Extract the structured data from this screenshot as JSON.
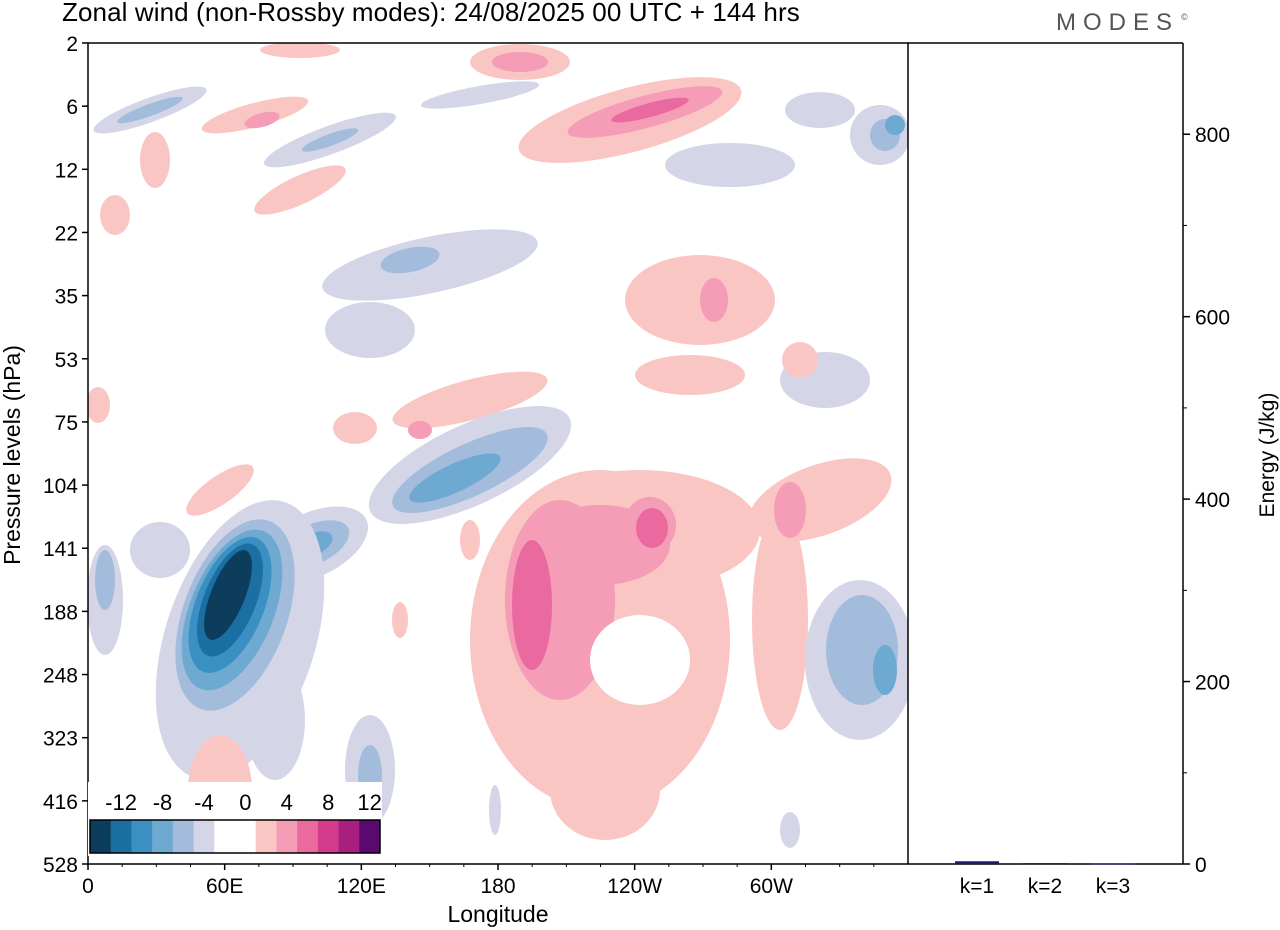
{
  "header": {
    "title": "Zonal wind (non-Rossby modes):  24/08/2025  00 UTC  + 144 hrs",
    "brand": "MODES",
    "brand_mark": "©"
  },
  "chart_data": [
    {
      "type": "heatmap",
      "title": "Zonal wind (non-Rossby modes)",
      "xlabel": "Longitude",
      "ylabel": "Pressure levels (hPa)",
      "x_ticks": [
        {
          "lon": 0,
          "label": "0"
        },
        {
          "lon": 60,
          "label": "60E"
        },
        {
          "lon": 120,
          "label": "120E"
        },
        {
          "lon": 180,
          "label": "180"
        },
        {
          "lon": 240,
          "label": "120W"
        },
        {
          "lon": 300,
          "label": "60W"
        }
      ],
      "xlim": [
        0,
        360
      ],
      "y_levels": [
        "2",
        "6",
        "12",
        "22",
        "35",
        "53",
        "75",
        "104",
        "141",
        "188",
        "248",
        "323",
        "416",
        "528"
      ],
      "colorbar": {
        "labels": [
          "-12",
          "-8",
          "-4",
          "0",
          "4",
          "8",
          "12"
        ],
        "levels": [
          -14,
          -12,
          -10,
          -8,
          -6,
          -4,
          -2,
          2,
          4,
          6,
          8,
          10,
          12,
          14
        ],
        "colors": [
          "#0c3d5c",
          "#1b6fa3",
          "#3a8fc3",
          "#6ea9d2",
          "#a3bcdb",
          "#d4d6e8",
          "#ffffff",
          "#ffffff",
          "#f9c6c4",
          "#f59cb6",
          "#ea6aa0",
          "#d43b8d",
          "#a81f80",
          "#5a0a6e"
        ]
      },
      "features": [
        {
          "lon": 60,
          "level": "188",
          "value": -14
        },
        {
          "lon": 200,
          "level": "188",
          "value": 8
        },
        {
          "lon": 240,
          "level": "141",
          "value": 8
        },
        {
          "lon": 250,
          "level": "6",
          "value": 8
        },
        {
          "lon": 190,
          "level": "2",
          "value": 8
        },
        {
          "lon": 355,
          "level": "248",
          "value": -8
        },
        {
          "lon": 145,
          "level": "104",
          "value": -8
        }
      ]
    },
    {
      "type": "bar",
      "categories": [
        "k=1",
        "k=2",
        "k=3"
      ],
      "values": [
        3,
        1,
        0.5
      ],
      "ylabel": "Energy (J/kg)",
      "ylim": [
        0,
        900
      ],
      "y_ticks": [
        0,
        200,
        400,
        600,
        800
      ],
      "bar_color": "#1a1a6e"
    }
  ]
}
